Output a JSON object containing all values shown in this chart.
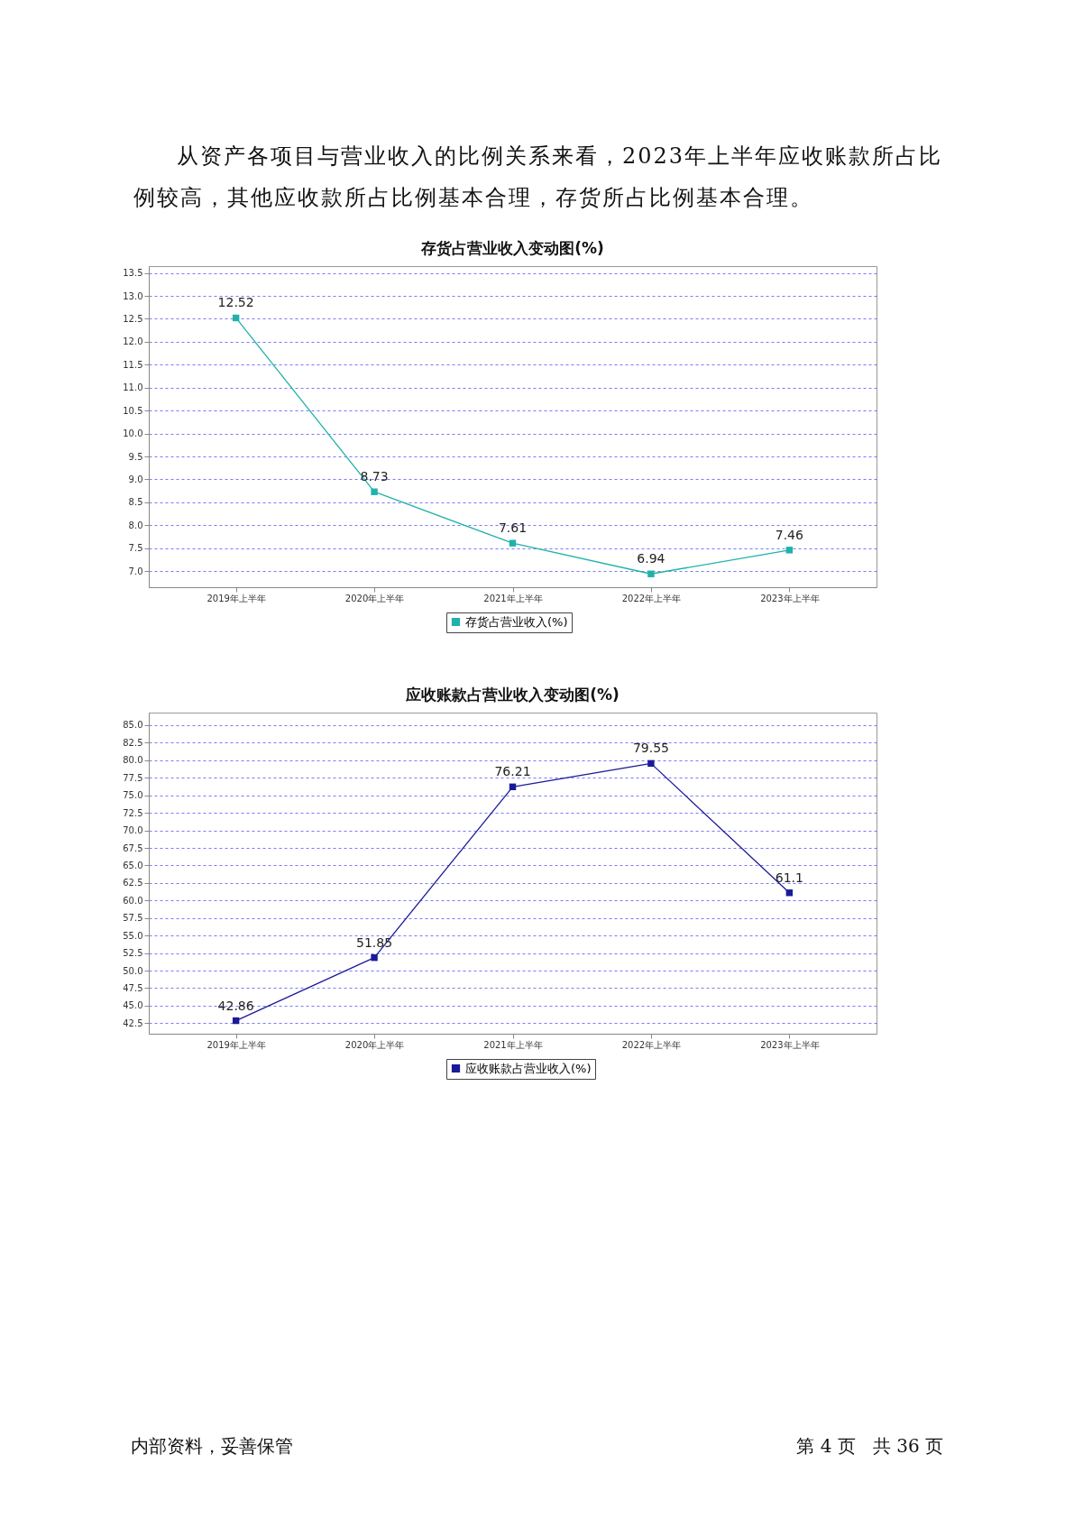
{
  "chart_data": [
    {
      "type": "line",
      "title": "存货占营业收入变动图(%)",
      "annotations": [
        "从资产各项目与营业收入的比例关系来看，2023年上半年应收账款所占比例较高，其他应收款所占比例基本合理，存货所占比例基本合理。"
      ],
      "categories": [
        "2019年上半年",
        "2020年上半年",
        "2021年上半年",
        "2022年上半年",
        "2023年上半年"
      ],
      "series": [
        {
          "name": "存货占营业收入(%)",
          "color": "#20b2aa",
          "values": [
            12.52,
            8.73,
            7.61,
            6.94,
            7.46
          ]
        }
      ],
      "ylim": [
        6.65,
        13.65
      ],
      "yticks": [
        {
          "value": 7,
          "label": "7.0"
        },
        7.5,
        {
          "value": 8,
          "label": "8.0"
        },
        8.5,
        {
          "value": 9,
          "label": "9.0"
        },
        9.5,
        {
          "value": 10,
          "label": "10.0"
        },
        10.5,
        {
          "value": 11,
          "label": "11.0"
        },
        11.5,
        {
          "value": 12,
          "label": "12.0"
        },
        12.5,
        {
          "value": 13,
          "label": "13.0"
        },
        13.5
      ],
      "grid": "y",
      "legend": "bottom",
      "marker": "square",
      "data_labels": true
    },
    {
      "type": "line",
      "title": "应收账款占营业收入变动图(%)",
      "annotations": [
        "内部资料，妥善保管",
        "第 4 页   共 36 页"
      ],
      "categories": [
        "2019年上半年",
        "2020年上半年",
        "2021年上半年",
        "2022年上半年",
        "2023年上半年"
      ],
      "series": [
        {
          "name": "应收账款占营业收入(%)",
          "color": "#1a1a99",
          "values": [
            42.86,
            51.85,
            76.21,
            79.55,
            61.1
          ]
        }
      ],
      "ylim": [
        41,
        86.8
      ],
      "yticks": [
        42.5,
        {
          "value": 45,
          "label": "45.0"
        },
        47.5,
        {
          "value": 50,
          "label": "50.0"
        },
        52.5,
        {
          "value": 55,
          "label": "55.0"
        },
        57.5,
        {
          "value": 60,
          "label": "60.0"
        },
        62.5,
        {
          "value": 65,
          "label": "65.0"
        },
        67.5,
        {
          "value": 70,
          "label": "70.0"
        },
        72.5,
        {
          "value": 75,
          "label": "75.0"
        },
        77.5,
        {
          "value": 80,
          "label": "80.0"
        },
        82.5,
        {
          "value": 85,
          "label": "85.0"
        }
      ],
      "grid": "y",
      "legend": "bottom",
      "marker": "square",
      "data_labels": true
    }
  ]
}
